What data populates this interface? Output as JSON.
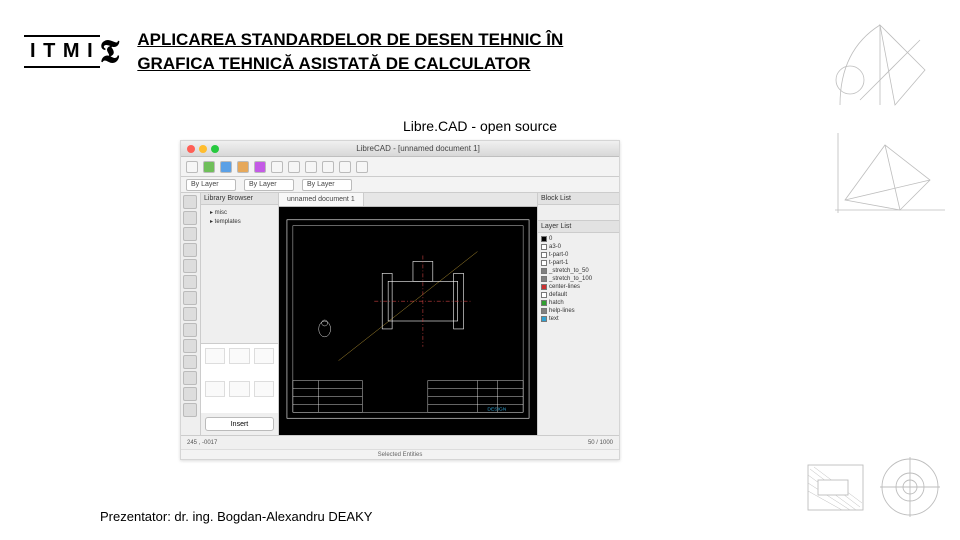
{
  "slide": {
    "logo_text": "I T M I",
    "swirl": "𝕿",
    "title": "APLICAREA STANDARDELOR DE DESEN TEHNIC ÎN GRAFICA TEHNICĂ ASISTATĂ DE CALCULATOR",
    "caption": "Libre.CAD - open source",
    "presenter": "Prezentator: dr. ing. Bogdan-Alexandru DEAKY"
  },
  "app": {
    "window_title": "LibreCAD - [unnamed document 1]",
    "doc_tab": "unnamed document 1",
    "toolbar_icons": [
      "#f6f6f6",
      "#6fbf5a",
      "#5aa0e6",
      "#e6a85a",
      "#c45ae6",
      "#f6f6f6",
      "#f6f6f6",
      "#f6f6f6",
      "#f6f6f6",
      "#f6f6f6",
      "#f6f6f6"
    ],
    "dropdowns": [
      {
        "label": "By Layer"
      },
      {
        "label": "By Layer"
      },
      {
        "label": "By Layer"
      }
    ],
    "lib_panel_title": "Library Browser",
    "lib_items": [
      "misc",
      "templates"
    ],
    "insert_label": "Insert",
    "block_panel_title": "Block List",
    "layer_panel_title": "Layer List",
    "layers": [
      {
        "name": "0",
        "color": "#000000"
      },
      {
        "name": "a3-0",
        "color": "#ffffff"
      },
      {
        "name": "t-part-0",
        "color": "#ffffff"
      },
      {
        "name": "t-part-1",
        "color": "#ffffff"
      },
      {
        "name": "_stretch_to_50",
        "color": "#808080"
      },
      {
        "name": "_stretch_to_100",
        "color": "#808080"
      },
      {
        "name": "center-lines",
        "color": "#cc3030"
      },
      {
        "name": "default",
        "color": "#ffffff"
      },
      {
        "name": "hatch",
        "color": "#30a030"
      },
      {
        "name": "help-lines",
        "color": "#808080"
      },
      {
        "name": "text",
        "color": "#30a0d0"
      }
    ],
    "status_left": "245 , -0017",
    "status_right": "50 / 1000",
    "under_bar": "Selected Entities",
    "canvas": {
      "background": "#000000",
      "frame_color": "#ffffff",
      "flange_color": "#ffffff",
      "centerline_color": "#c84040",
      "construction_color": "#b09030",
      "titleblock_text": "DESIGN",
      "tux_icon_color": "#e0e0e0"
    }
  }
}
